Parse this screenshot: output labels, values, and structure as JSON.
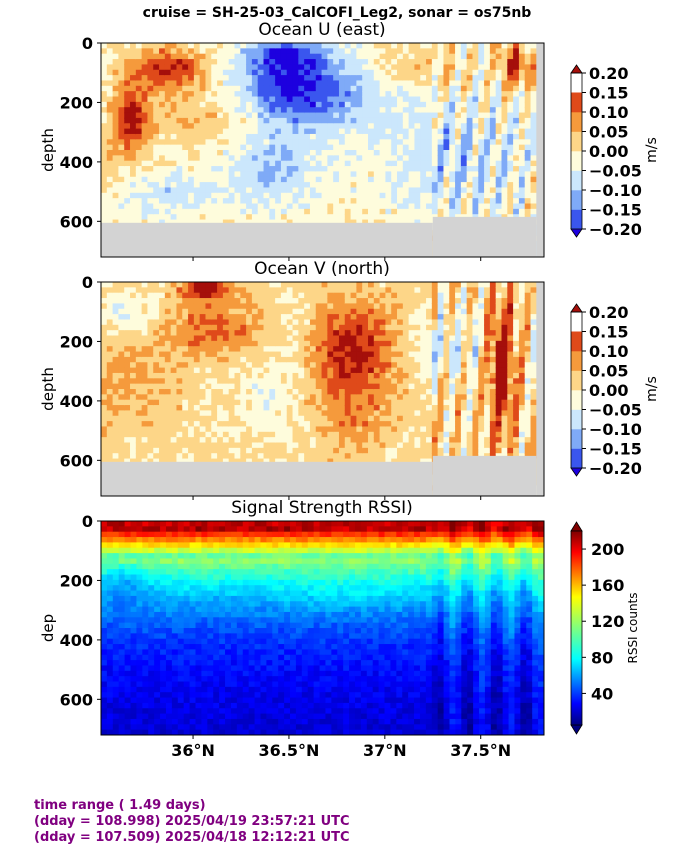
{
  "suptitle": "cruise = SH-25-03_CalCOFI_Leg2,  sonar = os75nb",
  "colors": {
    "footer": "#800080",
    "bottom_fill": "#d3d3d3"
  },
  "chart_data": [
    {
      "type": "heatmap",
      "title": "Ocean U (east)",
      "ylabel": "depth",
      "y_ticks": [
        "0",
        "200",
        "400",
        "600"
      ],
      "ylim": [
        720,
        0
      ],
      "xlim": [
        35.52,
        37.83
      ],
      "colorbar": {
        "label": "m/s",
        "ticks": [
          "0.20",
          "0.15",
          "0.10",
          "0.05",
          "0.00",
          "−0.05",
          "−0.10",
          "−0.15",
          "−0.20"
        ],
        "range": [
          -0.2,
          0.2
        ],
        "extend": "both"
      },
      "bottom_depth_segments": [
        {
          "x_start": 35.52,
          "x_end": 37.25,
          "depth": 605
        },
        {
          "x_start": 37.25,
          "x_end": 37.79,
          "depth": 585
        }
      ],
      "data_columns_end": 37.79
    },
    {
      "type": "heatmap",
      "title": "Ocean V (north)",
      "ylabel": "depth",
      "y_ticks": [
        "0",
        "200",
        "400",
        "600"
      ],
      "ylim": [
        720,
        0
      ],
      "xlim": [
        35.52,
        37.83
      ],
      "colorbar": {
        "label": "m/s",
        "ticks": [
          "0.20",
          "0.15",
          "0.10",
          "0.05",
          "0.00",
          "−0.05",
          "−0.10",
          "−0.15",
          "−0.20"
        ],
        "range": [
          -0.2,
          0.2
        ],
        "extend": "both"
      },
      "bottom_depth_segments": [
        {
          "x_start": 35.52,
          "x_end": 37.25,
          "depth": 605
        },
        {
          "x_start": 37.25,
          "x_end": 37.79,
          "depth": 585
        }
      ],
      "data_columns_end": 37.79
    },
    {
      "type": "heatmap",
      "title": "Signal Strength RSSI)",
      "ylabel": "dep",
      "y_ticks": [
        "0",
        "200",
        "400",
        "600"
      ],
      "ylim": [
        720,
        0
      ],
      "xlim": [
        35.52,
        37.83
      ],
      "x_ticks": [
        "36°N",
        "36.5°N",
        "37°N",
        "37.5°N"
      ],
      "colorbar": {
        "label": "RSSI counts",
        "ticks": [
          "200",
          "160",
          "120",
          "80",
          "40"
        ],
        "range": [
          5,
          220
        ],
        "extend": "both"
      }
    }
  ],
  "footer": {
    "line1": "time range ( 1.49 days)",
    "line2": "(dday = 108.998) 2025/04/19 23:57:21 UTC",
    "line3": "(dday = 107.509) 2025/04/18 12:12:21 UTC"
  }
}
